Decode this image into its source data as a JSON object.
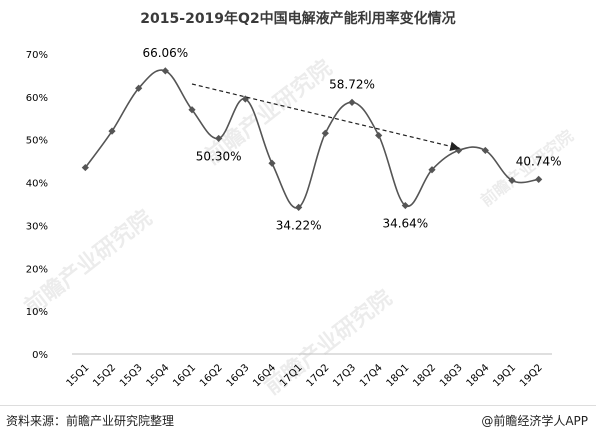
{
  "title": "2015-2019年Q2中国电解液产能利用率变化情况",
  "source": "资料来源：前瞻产业研究院整理",
  "brand": "@前瞻经济学人APP",
  "watermark": "前瞻产业研究院",
  "colors": {
    "line": "#555555",
    "marker": "#555555",
    "axis": "#bfbfbf",
    "text": "#000000"
  },
  "chart_data": {
    "type": "line",
    "categories": [
      "15Q1",
      "15Q2",
      "15Q3",
      "15Q4",
      "16Q1",
      "16Q2",
      "16Q3",
      "16Q4",
      "17Q1",
      "17Q2",
      "17Q3",
      "17Q4",
      "18Q1",
      "18Q2",
      "18Q3",
      "18Q4",
      "19Q1",
      "19Q2"
    ],
    "values": [
      43.5,
      52.0,
      62.0,
      66.06,
      57.0,
      50.3,
      59.5,
      44.5,
      34.22,
      51.5,
      58.72,
      51.0,
      34.64,
      43.0,
      47.5,
      47.5,
      40.5,
      40.74
    ],
    "ylim": [
      0,
      70
    ],
    "yticks": [
      0,
      10,
      20,
      30,
      40,
      50,
      60,
      70
    ],
    "ytick_labels": [
      "0%",
      "10%",
      "20%",
      "30%",
      "40%",
      "50%",
      "60%",
      "70%"
    ],
    "data_labels": [
      {
        "index": 3,
        "text": "66.06%",
        "pos": "above"
      },
      {
        "index": 5,
        "text": "50.30%",
        "pos": "below"
      },
      {
        "index": 8,
        "text": "34.22%",
        "pos": "below"
      },
      {
        "index": 10,
        "text": "58.72%",
        "pos": "above"
      },
      {
        "index": 12,
        "text": "34.64%",
        "pos": "below"
      },
      {
        "index": 17,
        "text": "40.74%",
        "pos": "above"
      }
    ],
    "trend_arrow": {
      "from_x": 4,
      "from_y": 63,
      "to_x": 14,
      "to_y": 48
    },
    "grid": false,
    "smooth": true
  }
}
